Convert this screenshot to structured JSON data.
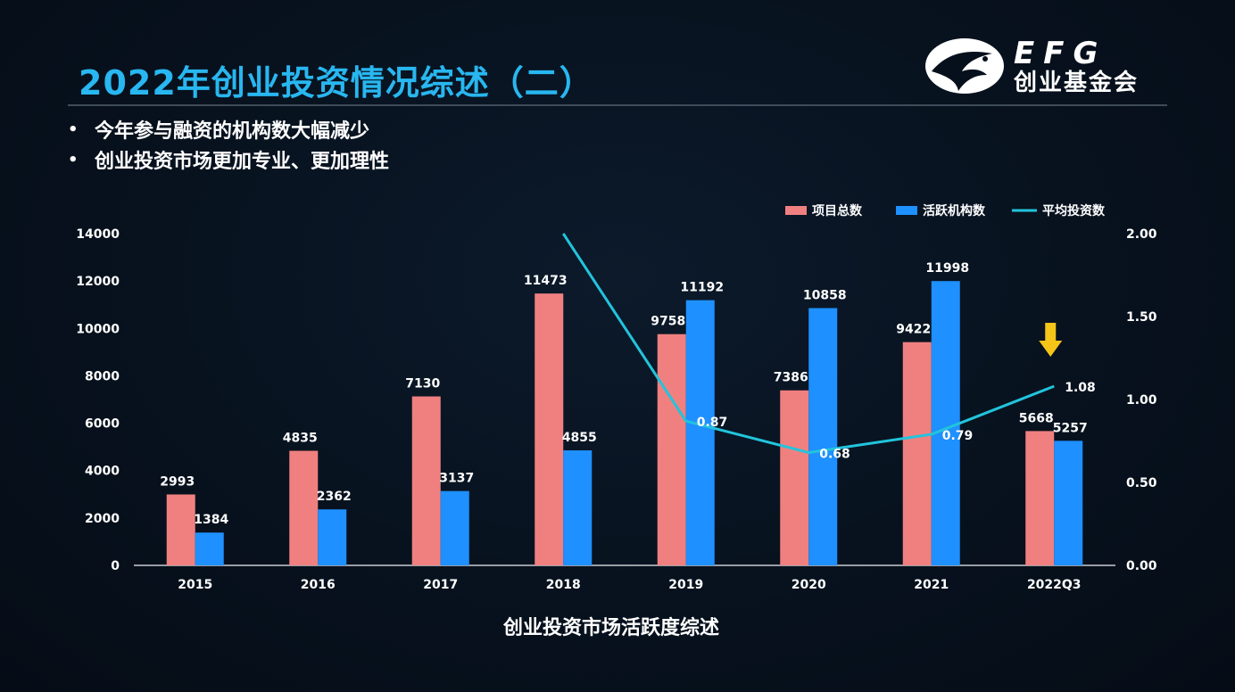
{
  "slide": {
    "title": "2022年创业投资情况综述（二）",
    "bullets": [
      "今年参与融资的机构数大幅减少",
      "创业投资市场更加专业、更加理性"
    ],
    "logo": {
      "en": "EFG",
      "cn": "创业基金会"
    },
    "caption": "创业投资市场活跃度综述"
  },
  "colors": {
    "title": "#28b7f0",
    "bar_projects": "#f08080",
    "bar_orgs": "#1e90ff",
    "line_avg": "#22c4dc",
    "arrow": "#f5c518"
  },
  "chart_data": {
    "type": "bar",
    "title": "创业投资市场活跃度综述",
    "categories": [
      "2015",
      "2016",
      "2017",
      "2018",
      "2019",
      "2020",
      "2021",
      "2022Q3"
    ],
    "series": [
      {
        "name": "项目总数",
        "kind": "bar",
        "axis": "left",
        "values": [
          2993,
          4835,
          7130,
          11473,
          9758,
          7386,
          9422,
          5668
        ]
      },
      {
        "name": "活跃机构数",
        "kind": "bar",
        "axis": "left",
        "values": [
          1384,
          2362,
          3137,
          4855,
          11192,
          10858,
          11998,
          5257
        ]
      },
      {
        "name": "平均投资数",
        "kind": "line",
        "axis": "right",
        "values": [
          null,
          null,
          null,
          2.0,
          0.87,
          0.68,
          0.79,
          1.08
        ],
        "labels": [
          "",
          "",
          "",
          "",
          "0.87",
          "0.68",
          "0.79",
          "1.08"
        ]
      }
    ],
    "y_left": {
      "min": 0,
      "max": 14000,
      "ticks": [
        "0",
        "2000",
        "4000",
        "6000",
        "8000",
        "10000",
        "12000",
        "14000"
      ]
    },
    "y_right": {
      "min": 0,
      "max": 2,
      "ticks": [
        "0.00",
        "0.50",
        "1.00",
        "1.50",
        "2.00"
      ]
    },
    "legend_position": "top-right",
    "grid": false,
    "annotations": [
      {
        "type": "down-arrow",
        "category": "2022Q3"
      }
    ]
  }
}
